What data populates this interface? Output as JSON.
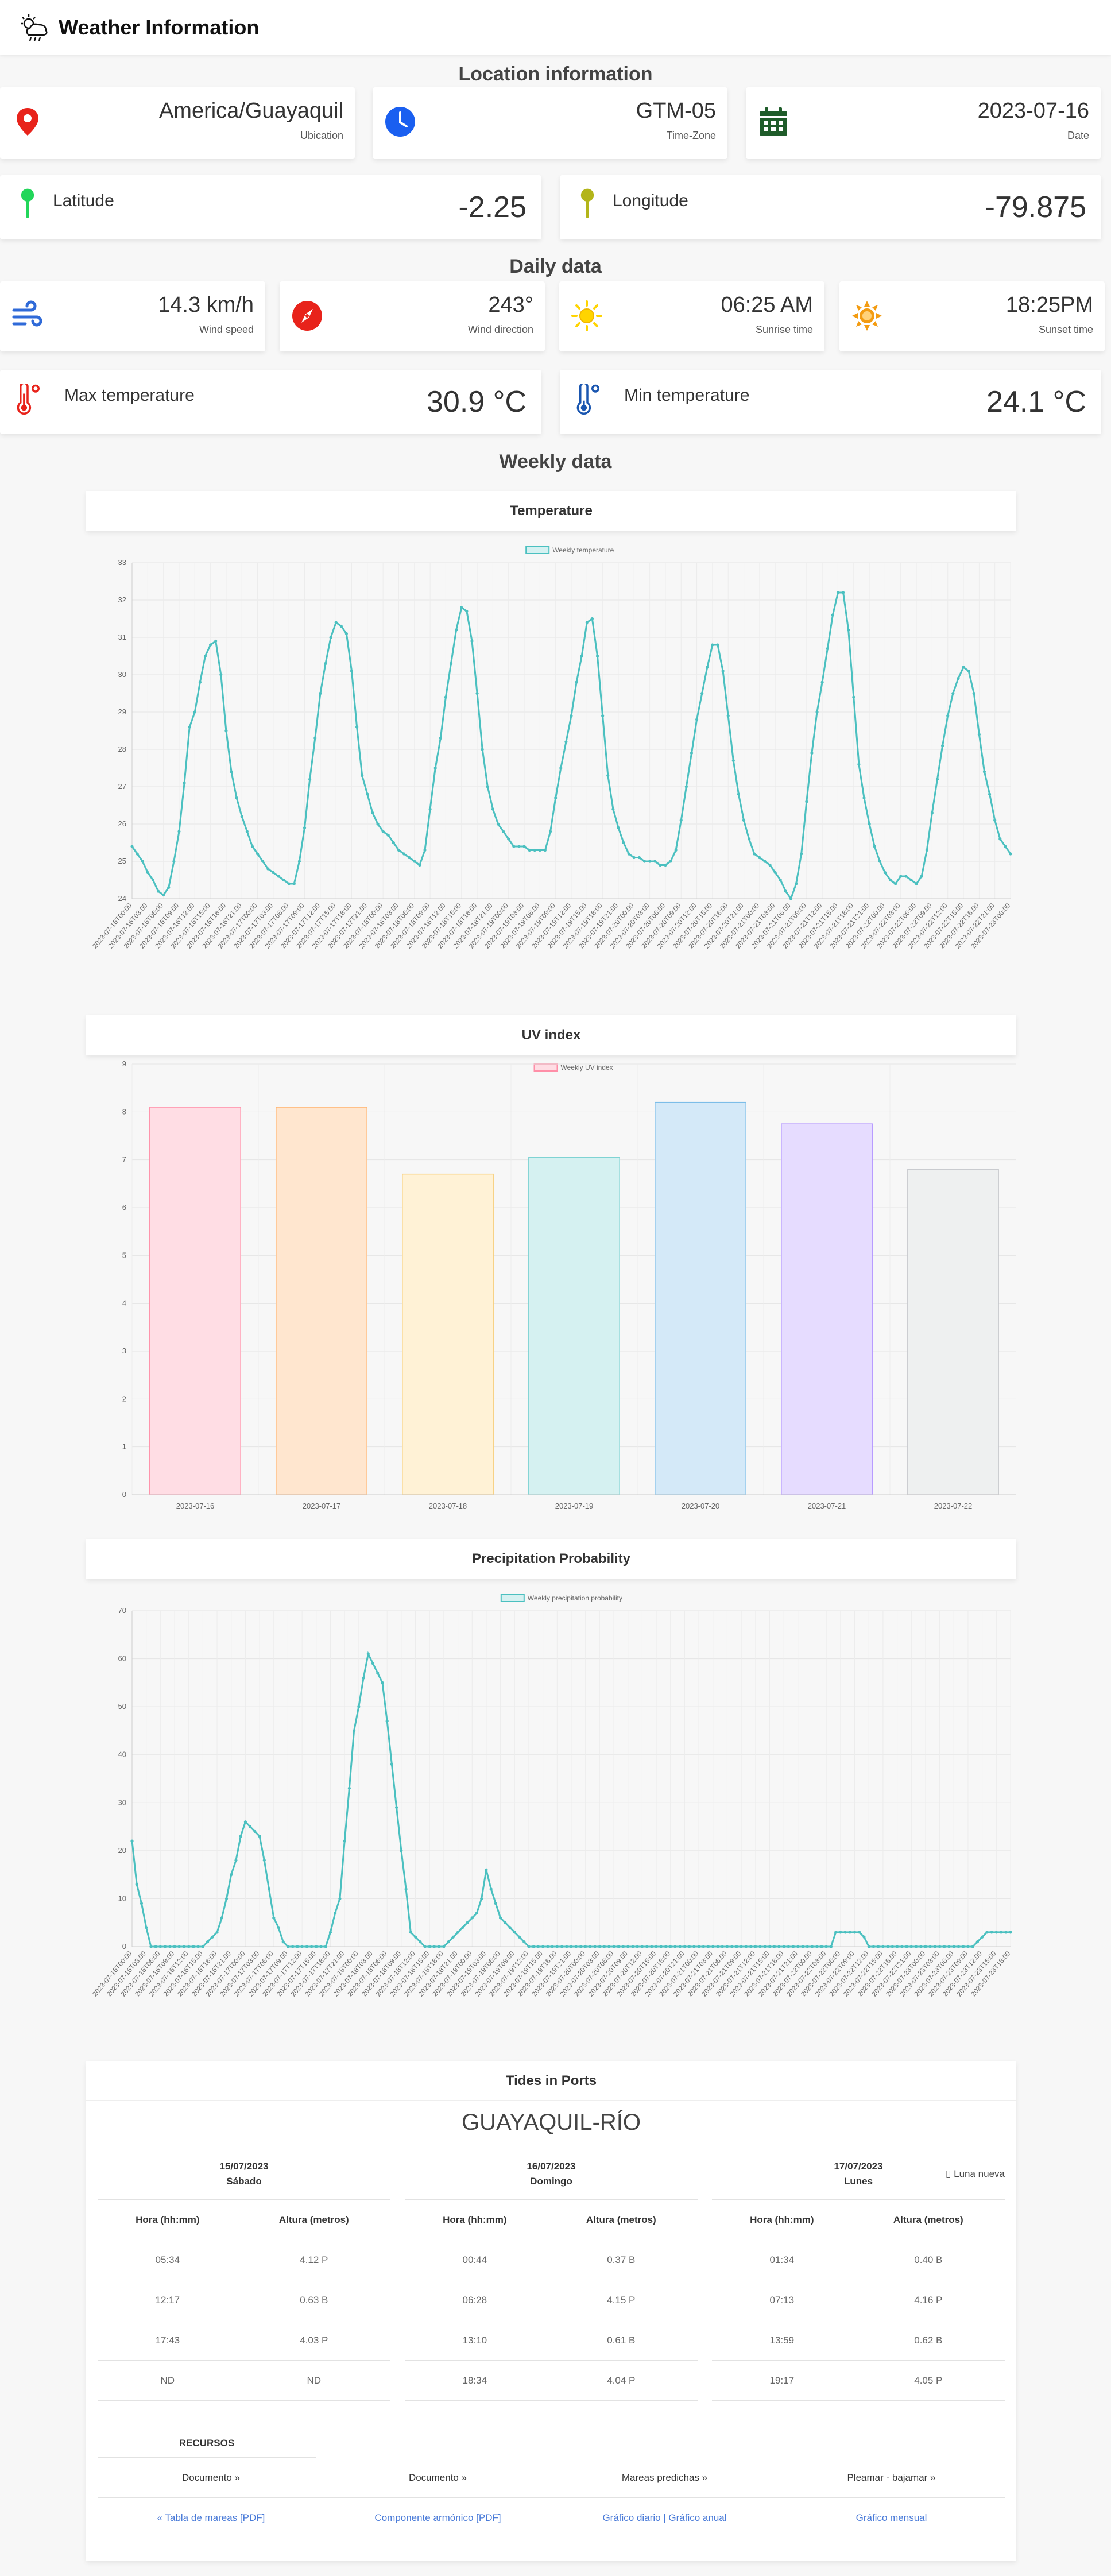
{
  "header": {
    "title": "Weather Information"
  },
  "sections": {
    "location": "Location information",
    "daily": "Daily data",
    "weekly": "Weekly data"
  },
  "location": {
    "ubication": {
      "value": "America/Guayaquil",
      "label": "Ubication"
    },
    "timezone": {
      "value": "GTM-05",
      "label": "Time-Zone"
    },
    "date": {
      "value": "2023-07-16",
      "label": "Date"
    },
    "latitude": {
      "label": "Latitude",
      "value": "-2.25"
    },
    "longitude": {
      "label": "Longitude",
      "value": "-79.875"
    }
  },
  "daily": {
    "wind_speed": {
      "value": "14.3 km/h",
      "label": "Wind speed"
    },
    "wind_direction": {
      "value": "243°",
      "label": "Wind direction"
    },
    "sunrise": {
      "value": "06:25 AM",
      "label": "Sunrise time"
    },
    "sunset": {
      "value": "18:25PM",
      "label": "Sunset time"
    },
    "max_temp": {
      "label": "Max temperature",
      "value": "30.9 °C"
    },
    "min_temp": {
      "label": "Min temperature",
      "value": "24.1 °C"
    }
  },
  "colors": {
    "line": "#4bc0c0",
    "bar_fills": [
      "#ffdde4",
      "#ffe6cf",
      "#fff2d6",
      "#d5f1f1",
      "#d4e9f8",
      "#e6dcff",
      "#eef0f0"
    ],
    "bar_strokes": [
      "#ff8fa8",
      "#ffb470",
      "#f7d080",
      "#7fd3d3",
      "#7cbde8",
      "#b497ff",
      "#c9cbcf"
    ]
  },
  "chart_data": [
    {
      "type": "line",
      "title": "Temperature",
      "legend": "Weekly temperature",
      "ylim": [
        24,
        33
      ],
      "yticks": [
        24,
        25,
        26,
        27,
        28,
        29,
        30,
        31,
        32,
        33
      ],
      "x_start": "2023-07-16T00:00",
      "x_step_hours": 1,
      "values": [
        25.4,
        25.2,
        25.0,
        24.7,
        24.5,
        24.2,
        24.1,
        24.3,
        25.0,
        25.8,
        27.1,
        28.6,
        29.0,
        29.8,
        30.5,
        30.8,
        30.9,
        30.0,
        28.5,
        27.4,
        26.7,
        26.2,
        25.8,
        25.4,
        25.2,
        25.0,
        24.8,
        24.7,
        24.6,
        24.5,
        24.4,
        24.4,
        25.0,
        25.9,
        27.2,
        28.3,
        29.5,
        30.3,
        31.0,
        31.4,
        31.3,
        31.1,
        30.1,
        28.6,
        27.3,
        26.8,
        26.3,
        26.0,
        25.8,
        25.7,
        25.5,
        25.3,
        25.2,
        25.1,
        25.0,
        24.9,
        25.3,
        26.4,
        27.5,
        28.3,
        29.4,
        30.3,
        31.2,
        31.8,
        31.7,
        30.9,
        29.5,
        28.0,
        27.0,
        26.4,
        26.0,
        25.8,
        25.6,
        25.4,
        25.4,
        25.4,
        25.3,
        25.3,
        25.3,
        25.3,
        25.8,
        26.7,
        27.5,
        28.2,
        28.9,
        29.8,
        30.5,
        31.4,
        31.5,
        30.5,
        28.9,
        27.3,
        26.4,
        25.9,
        25.5,
        25.2,
        25.1,
        25.1,
        25.0,
        25.0,
        25.0,
        24.9,
        24.9,
        25.0,
        25.3,
        26.1,
        27.0,
        27.9,
        28.8,
        29.5,
        30.2,
        30.8,
        30.8,
        30.1,
        28.9,
        27.7,
        26.8,
        26.1,
        25.6,
        25.2,
        25.1,
        25.0,
        24.9,
        24.7,
        24.5,
        24.2,
        24.0,
        24.4,
        25.2,
        26.6,
        27.9,
        29.0,
        29.8,
        30.7,
        31.6,
        32.2,
        32.2,
        31.2,
        29.4,
        27.6,
        26.7,
        26.0,
        25.4,
        25.0,
        24.7,
        24.5,
        24.4,
        24.6,
        24.6,
        24.5,
        24.4,
        24.6,
        25.3,
        26.3,
        27.2,
        28.1,
        28.9,
        29.5,
        29.9,
        30.2,
        30.1,
        29.5,
        28.4,
        27.4,
        26.8,
        26.1,
        25.6,
        25.4,
        25.2
      ]
    },
    {
      "type": "bar",
      "title": "UV index",
      "legend": "Weekly UV index",
      "ylim": [
        0,
        9
      ],
      "yticks": [
        0,
        1,
        2,
        3,
        4,
        5,
        6,
        7,
        8,
        9
      ],
      "categories": [
        "2023-07-16",
        "2023-07-17",
        "2023-07-18",
        "2023-07-19",
        "2023-07-20",
        "2023-07-21",
        "2023-07-22"
      ],
      "values": [
        8.1,
        8.1,
        6.7,
        7.05,
        8.2,
        7.75,
        6.8
      ]
    },
    {
      "type": "line",
      "title": "Precipitation Probability",
      "legend": "Weekly precipitation probability",
      "ylim": [
        0,
        70
      ],
      "yticks": [
        0,
        10,
        20,
        30,
        40,
        50,
        60,
        70
      ],
      "x_start": "2023-07-16T00:00",
      "x_step_hours": 1,
      "values": [
        22,
        13,
        9,
        4,
        0,
        0,
        0,
        0,
        0,
        0,
        0,
        0,
        0,
        0,
        0,
        0,
        1,
        2,
        3,
        6,
        10,
        15,
        18,
        23,
        26,
        25,
        24,
        23,
        18,
        12,
        6,
        4,
        1,
        0,
        0,
        0,
        0,
        0,
        0,
        0,
        0,
        0,
        3,
        7,
        10,
        22,
        33,
        45,
        50,
        56,
        61,
        59,
        57,
        55,
        47,
        38,
        29,
        20,
        12,
        3,
        2,
        1,
        0,
        0,
        0,
        0,
        0,
        1,
        2,
        3,
        4,
        5,
        6,
        7,
        10,
        16,
        12,
        9,
        6,
        5,
        4,
        3,
        2,
        1,
        0,
        0,
        0,
        0,
        0,
        0,
        0,
        0,
        0,
        0,
        0,
        0,
        0,
        0,
        0,
        0,
        0,
        0,
        0,
        0,
        0,
        0,
        0,
        0,
        0,
        0,
        0,
        0,
        0,
        0,
        0,
        0,
        0,
        0,
        0,
        0,
        0,
        0,
        0,
        0,
        0,
        0,
        0,
        0,
        0,
        0,
        0,
        0,
        0,
        0,
        0,
        0,
        0,
        0,
        0,
        0,
        0,
        0,
        0,
        0,
        0,
        0,
        0,
        0,
        0,
        3,
        3,
        3,
        3,
        3,
        3,
        2,
        0,
        0,
        0,
        0,
        0,
        0,
        0,
        0,
        0,
        0,
        0,
        0,
        0,
        0,
        0,
        0,
        0,
        0,
        0,
        0,
        0,
        0,
        0,
        1,
        2,
        3,
        3,
        3,
        3,
        3,
        3
      ]
    }
  ],
  "tides": {
    "title": "Tides in Ports",
    "port": "GUAYAQUIL-RÍO",
    "columns": {
      "hour": "Hora (hh:mm)",
      "height": "Altura (metros)"
    },
    "days": [
      {
        "date": "15/07/2023",
        "weekday": "Sábado",
        "rows": [
          [
            "05:34",
            "4.12 P"
          ],
          [
            "12:17",
            "0.63 B"
          ],
          [
            "17:43",
            "4.03 P"
          ],
          [
            "ND",
            "ND"
          ]
        ]
      },
      {
        "date": "16/07/2023",
        "weekday": "Domingo",
        "rows": [
          [
            "00:44",
            "0.37 B"
          ],
          [
            "06:28",
            "4.15 P"
          ],
          [
            "13:10",
            "0.61 B"
          ],
          [
            "18:34",
            "4.04 P"
          ]
        ]
      },
      {
        "date": "17/07/2023",
        "weekday": "Lunes",
        "rows": [
          [
            "01:34",
            "0.40 B"
          ],
          [
            "07:13",
            "4.16 P"
          ],
          [
            "13:59",
            "0.62 B"
          ],
          [
            "19:17",
            "4.05 P"
          ]
        ]
      }
    ],
    "moon_alt": "Luna nueva",
    "resources": {
      "title": "RECURSOS",
      "headers": [
        "Documento »",
        "Documento »",
        "Mareas predichas »",
        "Pleamar - bajamar »"
      ],
      "links": [
        "« Tabla de mareas [PDF]",
        "Componente armónico [PDF]",
        "Gráfico diario  |  Gráfico anual",
        "Gráfico mensual"
      ]
    }
  }
}
